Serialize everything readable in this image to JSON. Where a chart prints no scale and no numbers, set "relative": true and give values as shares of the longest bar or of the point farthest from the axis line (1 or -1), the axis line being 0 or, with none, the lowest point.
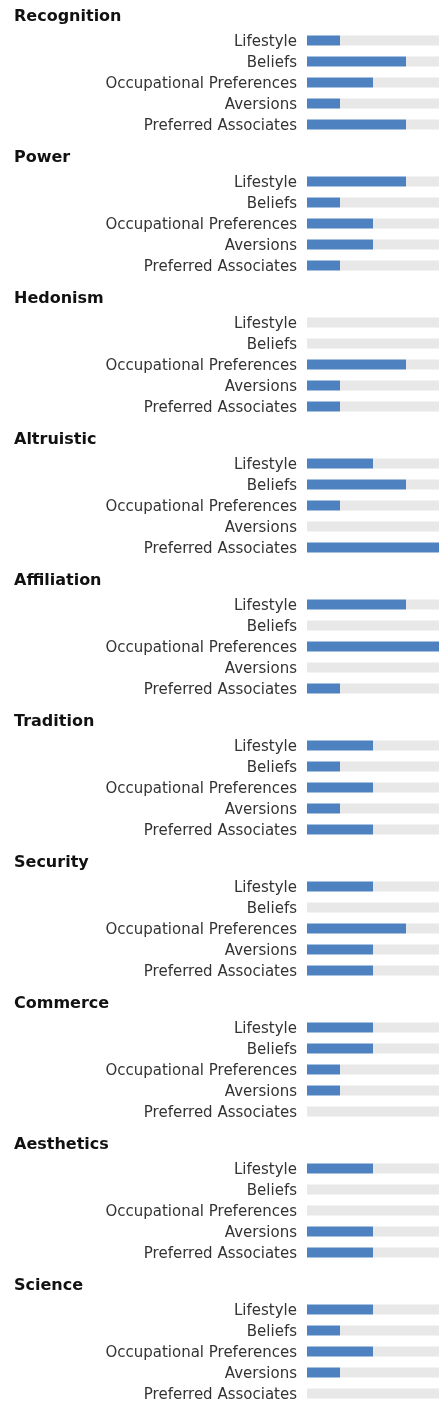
{
  "chart_data": [
    {
      "type": "bar",
      "title": "Recognition",
      "orientation": "horizontal",
      "stacked": true,
      "relative": true,
      "categories": [
        "Lifestyle",
        "Beliefs",
        "Occupational Preferences",
        "Aversions",
        "Preferred Associates"
      ],
      "series": [
        {
          "color": "#4e81c0",
          "values": [
            0.25,
            0.75,
            0.5,
            0.25,
            0.75
          ]
        },
        {
          "color": "#e8e8e8",
          "values": [
            0.75,
            0.25,
            0.5,
            0.75,
            0.25
          ]
        }
      ]
    },
    {
      "type": "bar",
      "title": "Power",
      "orientation": "horizontal",
      "stacked": true,
      "relative": true,
      "categories": [
        "Lifestyle",
        "Beliefs",
        "Occupational Preferences",
        "Aversions",
        "Preferred Associates"
      ],
      "series": [
        {
          "color": "#4e81c0",
          "values": [
            0.75,
            0.25,
            0.5,
            0.5,
            0.25
          ]
        },
        {
          "color": "#e8e8e8",
          "values": [
            0.25,
            0.75,
            0.5,
            0.5,
            0.75
          ]
        }
      ]
    },
    {
      "type": "bar",
      "title": "Hedonism",
      "orientation": "horizontal",
      "stacked": true,
      "relative": true,
      "categories": [
        "Lifestyle",
        "Beliefs",
        "Occupational Preferences",
        "Aversions",
        "Preferred Associates"
      ],
      "series": [
        {
          "color": "#4e81c0",
          "values": [
            0,
            0,
            0.75,
            0.25,
            0.25
          ]
        },
        {
          "color": "#e8e8e8",
          "values": [
            1,
            1,
            0.25,
            0.75,
            0.75
          ]
        }
      ]
    },
    {
      "type": "bar",
      "title": "Altruistic",
      "orientation": "horizontal",
      "stacked": true,
      "relative": true,
      "categories": [
        "Lifestyle",
        "Beliefs",
        "Occupational Preferences",
        "Aversions",
        "Preferred Associates"
      ],
      "series": [
        {
          "color": "#4e81c0",
          "values": [
            0.5,
            0.75,
            0.25,
            0,
            1
          ]
        },
        {
          "color": "#e8e8e8",
          "values": [
            0.5,
            0.25,
            0.75,
            1,
            0
          ]
        }
      ]
    },
    {
      "type": "bar",
      "title": "Affiliation",
      "orientation": "horizontal",
      "stacked": true,
      "relative": true,
      "categories": [
        "Lifestyle",
        "Beliefs",
        "Occupational Preferences",
        "Aversions",
        "Preferred Associates"
      ],
      "series": [
        {
          "color": "#4e81c0",
          "values": [
            0.75,
            0,
            1,
            0,
            0.25
          ]
        },
        {
          "color": "#e8e8e8",
          "values": [
            0.25,
            1,
            0,
            1,
            0.75
          ]
        }
      ]
    },
    {
      "type": "bar",
      "title": "Tradition",
      "orientation": "horizontal",
      "stacked": true,
      "relative": true,
      "categories": [
        "Lifestyle",
        "Beliefs",
        "Occupational Preferences",
        "Aversions",
        "Preferred Associates"
      ],
      "series": [
        {
          "color": "#4e81c0",
          "values": [
            0.5,
            0.25,
            0.5,
            0.25,
            0.5
          ]
        },
        {
          "color": "#e8e8e8",
          "values": [
            0.5,
            0.75,
            0.5,
            0.75,
            0.5
          ]
        }
      ]
    },
    {
      "type": "bar",
      "title": "Security",
      "orientation": "horizontal",
      "stacked": true,
      "relative": true,
      "categories": [
        "Lifestyle",
        "Beliefs",
        "Occupational Preferences",
        "Aversions",
        "Preferred Associates"
      ],
      "series": [
        {
          "color": "#4e81c0",
          "values": [
            0.5,
            0,
            0.75,
            0.5,
            0.5
          ]
        },
        {
          "color": "#e8e8e8",
          "values": [
            0.5,
            1,
            0.25,
            0.5,
            0.5
          ]
        }
      ]
    },
    {
      "type": "bar",
      "title": "Commerce",
      "orientation": "horizontal",
      "stacked": true,
      "relative": true,
      "categories": [
        "Lifestyle",
        "Beliefs",
        "Occupational Preferences",
        "Aversions",
        "Preferred Associates"
      ],
      "series": [
        {
          "color": "#4e81c0",
          "values": [
            0.5,
            0.5,
            0.25,
            0.25,
            0
          ]
        },
        {
          "color": "#e8e8e8",
          "values": [
            0.5,
            0.5,
            0.75,
            0.75,
            1
          ]
        }
      ]
    },
    {
      "type": "bar",
      "title": "Aesthetics",
      "orientation": "horizontal",
      "stacked": true,
      "relative": true,
      "categories": [
        "Lifestyle",
        "Beliefs",
        "Occupational Preferences",
        "Aversions",
        "Preferred Associates"
      ],
      "series": [
        {
          "color": "#4e81c0",
          "values": [
            0.5,
            0,
            0,
            0.5,
            0.5
          ]
        },
        {
          "color": "#e8e8e8",
          "values": [
            0.5,
            1,
            1,
            0.5,
            0.5
          ]
        }
      ]
    },
    {
      "type": "bar",
      "title": "Science",
      "orientation": "horizontal",
      "stacked": true,
      "relative": true,
      "categories": [
        "Lifestyle",
        "Beliefs",
        "Occupational Preferences",
        "Aversions",
        "Preferred Associates"
      ],
      "series": [
        {
          "color": "#4e81c0",
          "values": [
            0.5,
            0.25,
            0.5,
            0.25,
            0
          ]
        },
        {
          "color": "#e8e8e8",
          "values": [
            0.5,
            0.75,
            0.5,
            0.75,
            1
          ]
        }
      ]
    }
  ]
}
